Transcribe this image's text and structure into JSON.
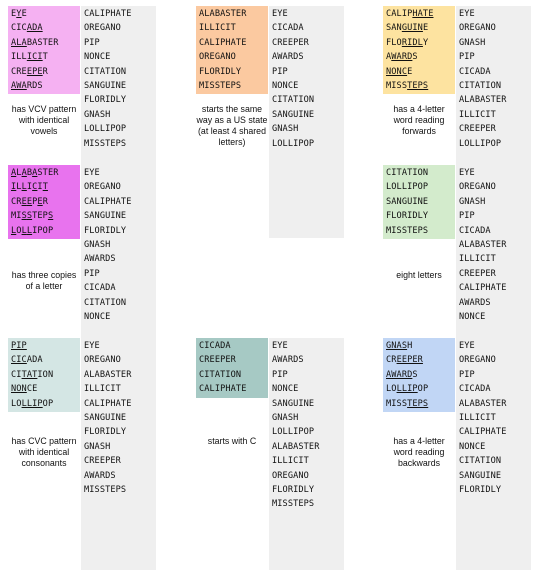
{
  "panels": [
    {
      "caption": "has VCV pattern with identical vowels",
      "color": "#f5b1f2",
      "highlighted": [
        [
          "EYE",
          "E_Y_E"
        ],
        [
          "CICADA",
          "CIC_ADA_"
        ],
        [
          "ALABASTER",
          "_ALA_BASTER"
        ],
        [
          "ILLICIT",
          "ILL_ICI_T"
        ],
        [
          "CREEPER",
          "CRE_EPE_R"
        ],
        [
          "AWARDS",
          "_AWA_RDS"
        ]
      ],
      "rest": [
        "CALIPHATE",
        "OREGANO",
        "PIP",
        "NONCE",
        "CITATION",
        "SANGUINE",
        "FLORIDLY",
        "GNASH",
        "LOLLIPOP",
        "MISSTEPS"
      ]
    },
    {
      "caption": "starts the same way as a US state (at least 4 shared letters)",
      "color": "#fbc9a0",
      "highlighted": [
        [
          "ALABASTER",
          "ALABASTER"
        ],
        [
          "ILLICIT",
          "ILLICIT"
        ],
        [
          "CALIPHATE",
          "CALIPHATE"
        ],
        [
          "OREGANO",
          "OREGANO"
        ],
        [
          "FLORIDLY",
          "FLORIDLY"
        ],
        [
          "MISSTEPS",
          "MISSTEPS"
        ]
      ],
      "rest": [
        "EYE",
        "CICADA",
        "CREEPER",
        "AWARDS",
        "PIP",
        "NONCE",
        "CITATION",
        "SANGUINE",
        "GNASH",
        "LOLLIPOP"
      ]
    },
    {
      "caption": "has a 4-letter word reading forwards",
      "color": "#fde3a0",
      "highlighted": [
        [
          "CALIPHATE",
          "CALIP_HATE_"
        ],
        [
          "SANGUINE",
          "SAN_GUIN_E"
        ],
        [
          "FLORIDLY",
          "FLO_RIDL_Y"
        ],
        [
          "AWARDS",
          "A_WARD_S"
        ],
        [
          "NONCE",
          "_NONC_E"
        ],
        [
          "MISSTEPS",
          "MISS_TEPS_"
        ]
      ],
      "rest": [
        "EYE",
        "OREGANO",
        "GNASH",
        "PIP",
        "CICADA",
        "CITATION",
        "ALABASTER",
        "ILLICIT",
        "CREEPER",
        "LOLLIPOP"
      ]
    },
    {
      "caption": "has three copies of a letter",
      "color": "#e873ee",
      "highlighted": [
        [
          "ALABASTER",
          "_A_L_A_B_A_STER"
        ],
        [
          "ILLICIT",
          "_I_L_L_I_C_I_T"
        ],
        [
          "CREEPER",
          "CR_E__E_P_E_R"
        ],
        [
          "MISSTEPS",
          "MI_S__S_TEP_S_"
        ],
        [
          "LOLLIPOP",
          "_L_O_L__L_IPOP"
        ]
      ],
      "rest": [
        "EYE",
        "OREGANO",
        "CALIPHATE",
        "SANGUINE",
        "FLORIDLY",
        "GNASH",
        "AWARDS",
        "PIP",
        "CICADA",
        "CITATION",
        "NONCE"
      ]
    },
    {
      "caption": "eight letters",
      "color": "#d3ebcc",
      "highlighted": [
        [
          "CITATION",
          "CITATION"
        ],
        [
          "LOLLIPOP",
          "LOLLIPOP"
        ],
        [
          "SANGUINE",
          "SANGUINE"
        ],
        [
          "FLORIDLY",
          "FLORIDLY"
        ],
        [
          "MISSTEPS",
          "MISSTEPS"
        ]
      ],
      "rest": [
        "EYE",
        "OREGANO",
        "GNASH",
        "PIP",
        "CICADA",
        "ALABASTER",
        "ILLICIT",
        "CREEPER",
        "CALIPHATE",
        "AWARDS",
        "NONCE"
      ]
    },
    {
      "caption": "has CVC pattern with identical consonants",
      "color": "#d4e6e4",
      "highlighted": [
        [
          "PIP",
          "_PIP_"
        ],
        [
          "CICADA",
          "_CIC_ADA"
        ],
        [
          "CITATION",
          "CI_TAT_ION"
        ],
        [
          "NONCE",
          "_NON_CE"
        ],
        [
          "LOLLIPOP",
          "LO_LLIP_OP"
        ]
      ],
      "rest": [
        "EYE",
        "OREGANO",
        "ALABASTER",
        "ILLICIT",
        "CALIPHATE",
        "SANGUINE",
        "FLORIDLY",
        "GNASH",
        "CREEPER",
        "AWARDS",
        "MISSTEPS"
      ]
    },
    {
      "caption": "starts with C",
      "color": "#a6c9c4",
      "highlighted": [
        [
          "CICADA",
          "CICADA"
        ],
        [
          "CREEPER",
          "CREEPER"
        ],
        [
          "CITATION",
          "CITATION"
        ],
        [
          "CALIPHATE",
          "CALIPHATE"
        ]
      ],
      "rest": [
        "EYE",
        "AWARDS",
        "PIP",
        "NONCE",
        "SANGUINE",
        "GNASH",
        "LOLLIPOP",
        "ALABASTER",
        "ILLICIT",
        "OREGANO",
        "FLORIDLY",
        "MISSTEPS"
      ]
    },
    {
      "caption": "has a 4-letter word reading backwards",
      "color": "#c1d6f5",
      "highlighted": [
        [
          "GNASH",
          "_GNAS_H"
        ],
        [
          "CREEPER",
          "CR_EEPER_"
        ],
        [
          "AWARDS",
          "_AWARD_S"
        ],
        [
          "LOLLIPOP",
          "LO_LLIP_OP"
        ],
        [
          "MISSTEPS",
          "MISS_TEPS_"
        ]
      ],
      "rest": [
        "EYE",
        "OREGANO",
        "PIP",
        "CICADA",
        "ALABASTER",
        "ILLICIT",
        "CALIPHATE",
        "NONCE",
        "CITATION",
        "SANGUINE",
        "FLORIDLY"
      ]
    }
  ]
}
